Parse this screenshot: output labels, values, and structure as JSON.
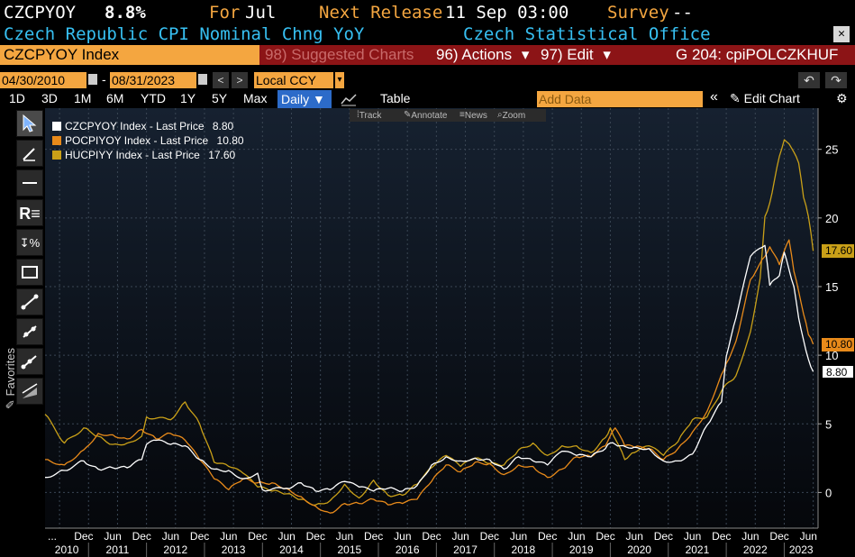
{
  "header": {
    "ticker": "CZCPYOY",
    "value": "8.8%",
    "period_prefix": "For",
    "period": "Jul",
    "next_release_label": "Next Release",
    "next_release": "11 Sep 03:00",
    "survey_label": "Survey",
    "survey_value": "--",
    "description": "Czech Republic CPI Nominal Chng YoY",
    "source": "Czech Statistical Office",
    "close_glyph": "✕"
  },
  "toolbar_bar": {
    "security": "CZCPYOY Index",
    "suggested": "98) Suggested Charts",
    "actions": "96) Actions",
    "edit": "97) Edit",
    "chart_id": "G 204: cpiPOLCZKHUF",
    "dropdown_glyph": "▾"
  },
  "dates": {
    "start": "04/30/2010",
    "dash": "-",
    "end": "08/31/2023",
    "prev": "<",
    "next": ">",
    "currency": "Local CCY"
  },
  "periods": {
    "items": [
      "1D",
      "3D",
      "1M",
      "6M",
      "YTD",
      "1Y",
      "5Y",
      "Max"
    ],
    "frequency": "Daily ▼",
    "table_label": "Table",
    "add_data_placeholder": "Add Data",
    "collapse": "«",
    "edit_chart": "Edit Chart",
    "undo": "↶",
    "redo": "↷"
  },
  "mini_toolbar": {
    "track": "Track",
    "annotate": "Annotate",
    "news": "News",
    "zoom": "Zoom"
  },
  "left_toolbar": {
    "favorites": "Favorites"
  },
  "colors": {
    "czcpyoy": "#ffffff",
    "pocpiyoy": "#e88a1a",
    "hucpiyy": "#c9a018",
    "amber": "#f4a640",
    "cyan": "#37c0f2",
    "redbar": "#8c1416"
  },
  "chart_data": {
    "type": "line",
    "x_axis_year_labels": [
      "2010",
      "2011",
      "2012",
      "2013",
      "2014",
      "2015",
      "2016",
      "2017",
      "2018",
      "2019",
      "2020",
      "2021",
      "2022",
      "2023"
    ],
    "x_axis_month_labels": [
      "...",
      "Dec",
      "Jun",
      "Dec",
      "Jun",
      "Dec",
      "Jun",
      "Dec",
      "Jun",
      "Dec",
      "Jun",
      "Dec",
      "Jun",
      "Dec",
      "Jun",
      "Dec",
      "Jun",
      "Dec",
      "Jun",
      "Dec",
      "Jun",
      "Dec",
      "Jun",
      "Dec",
      "Jun",
      "Dec",
      "Jun"
    ],
    "xlim": [
      "2010-04",
      "2023-08"
    ],
    "y_ticks": [
      0,
      5,
      10,
      15,
      20,
      25
    ],
    "ylim": [
      -2.6,
      28
    ],
    "grid": true,
    "legend_position": "top-left",
    "series": [
      {
        "name": "CZCPYOY Index - Last Price",
        "last": "8.80",
        "color": "#ffffff",
        "values": [
          [
            "2010-04",
            1.1
          ],
          [
            "2010-08",
            1.6
          ],
          [
            "2010-12",
            2.3
          ],
          [
            "2011-03",
            1.7
          ],
          [
            "2011-06",
            1.8
          ],
          [
            "2011-09",
            1.8
          ],
          [
            "2011-12",
            2.4
          ],
          [
            "2012-01",
            3.5
          ],
          [
            "2012-03",
            3.8
          ],
          [
            "2012-06",
            3.5
          ],
          [
            "2012-09",
            3.4
          ],
          [
            "2012-12",
            2.4
          ],
          [
            "2013-03",
            1.7
          ],
          [
            "2013-06",
            1.6
          ],
          [
            "2013-09",
            1.0
          ],
          [
            "2013-12",
            1.4
          ],
          [
            "2014-01",
            0.2
          ],
          [
            "2014-06",
            0.3
          ],
          [
            "2014-09",
            0.7
          ],
          [
            "2014-12",
            0.1
          ],
          [
            "2015-03",
            0.2
          ],
          [
            "2015-06",
            0.8
          ],
          [
            "2015-09",
            0.4
          ],
          [
            "2015-12",
            0.1
          ],
          [
            "2016-03",
            0.3
          ],
          [
            "2016-06",
            0.1
          ],
          [
            "2016-09",
            0.5
          ],
          [
            "2016-12",
            2.0
          ],
          [
            "2017-03",
            2.6
          ],
          [
            "2017-06",
            2.3
          ],
          [
            "2017-09",
            2.5
          ],
          [
            "2017-12",
            2.4
          ],
          [
            "2018-03",
            1.7
          ],
          [
            "2018-06",
            2.6
          ],
          [
            "2018-09",
            2.3
          ],
          [
            "2018-12",
            2.0
          ],
          [
            "2019-03",
            3.0
          ],
          [
            "2019-06",
            2.7
          ],
          [
            "2019-09",
            2.6
          ],
          [
            "2019-12",
            3.2
          ],
          [
            "2020-01",
            3.6
          ],
          [
            "2020-03",
            3.4
          ],
          [
            "2020-06",
            3.3
          ],
          [
            "2020-09",
            3.2
          ],
          [
            "2020-12",
            2.3
          ],
          [
            "2021-03",
            2.3
          ],
          [
            "2021-06",
            2.8
          ],
          [
            "2021-09",
            4.9
          ],
          [
            "2021-12",
            6.6
          ],
          [
            "2022-01",
            9.9
          ],
          [
            "2022-03",
            12.7
          ],
          [
            "2022-06",
            17.2
          ],
          [
            "2022-09",
            18.0
          ],
          [
            "2022-10",
            15.1
          ],
          [
            "2022-12",
            15.8
          ],
          [
            "2023-01",
            17.5
          ],
          [
            "2023-03",
            15.0
          ],
          [
            "2023-04",
            12.7
          ],
          [
            "2023-05",
            11.1
          ],
          [
            "2023-06",
            9.7
          ],
          [
            "2023-07",
            8.8
          ]
        ]
      },
      {
        "name": "POCPIYOY Index - Last Price",
        "last": "10.80",
        "color": "#e88a1a",
        "values": [
          [
            "2010-04",
            2.4
          ],
          [
            "2010-08",
            2.0
          ],
          [
            "2010-12",
            3.1
          ],
          [
            "2011-03",
            4.3
          ],
          [
            "2011-06",
            4.2
          ],
          [
            "2011-09",
            3.9
          ],
          [
            "2011-12",
            4.6
          ],
          [
            "2012-03",
            3.9
          ],
          [
            "2012-06",
            4.3
          ],
          [
            "2012-09",
            3.8
          ],
          [
            "2012-12",
            2.4
          ],
          [
            "2013-03",
            1.0
          ],
          [
            "2013-06",
            0.2
          ],
          [
            "2013-09",
            1.0
          ],
          [
            "2013-12",
            0.7
          ],
          [
            "2014-03",
            0.7
          ],
          [
            "2014-06",
            0.3
          ],
          [
            "2014-09",
            -0.3
          ],
          [
            "2014-12",
            -1.0
          ],
          [
            "2015-03",
            -1.5
          ],
          [
            "2015-06",
            -0.8
          ],
          [
            "2015-09",
            -0.8
          ],
          [
            "2015-12",
            -0.5
          ],
          [
            "2016-03",
            -0.9
          ],
          [
            "2016-06",
            -0.8
          ],
          [
            "2016-09",
            -0.5
          ],
          [
            "2016-12",
            0.8
          ],
          [
            "2017-03",
            2.0
          ],
          [
            "2017-06",
            1.5
          ],
          [
            "2017-09",
            2.2
          ],
          [
            "2017-12",
            2.1
          ],
          [
            "2018-03",
            1.3
          ],
          [
            "2018-06",
            2.0
          ],
          [
            "2018-09",
            1.9
          ],
          [
            "2018-12",
            1.1
          ],
          [
            "2019-03",
            1.7
          ],
          [
            "2019-06",
            2.6
          ],
          [
            "2019-09",
            2.6
          ],
          [
            "2019-12",
            3.4
          ],
          [
            "2020-02",
            4.7
          ],
          [
            "2020-04",
            3.4
          ],
          [
            "2020-06",
            3.3
          ],
          [
            "2020-09",
            3.2
          ],
          [
            "2020-12",
            2.4
          ],
          [
            "2021-03",
            3.2
          ],
          [
            "2021-06",
            4.4
          ],
          [
            "2021-09",
            5.9
          ],
          [
            "2021-12",
            8.6
          ],
          [
            "2022-01",
            9.4
          ],
          [
            "2022-03",
            11.0
          ],
          [
            "2022-06",
            15.5
          ],
          [
            "2022-09",
            17.2
          ],
          [
            "2022-10",
            17.9
          ],
          [
            "2022-12",
            16.6
          ],
          [
            "2023-02",
            18.4
          ],
          [
            "2023-03",
            16.1
          ],
          [
            "2023-05",
            13.0
          ],
          [
            "2023-06",
            11.5
          ],
          [
            "2023-07",
            10.8
          ]
        ]
      },
      {
        "name": "HUCPIYY Index - Last Price",
        "last": "17.60",
        "color": "#c9a018",
        "values": [
          [
            "2010-04",
            5.7
          ],
          [
            "2010-08",
            3.6
          ],
          [
            "2010-12",
            4.7
          ],
          [
            "2011-03",
            4.1
          ],
          [
            "2011-06",
            3.5
          ],
          [
            "2011-09",
            3.6
          ],
          [
            "2011-12",
            4.1
          ],
          [
            "2012-01",
            5.5
          ],
          [
            "2012-06",
            5.3
          ],
          [
            "2012-09",
            6.6
          ],
          [
            "2012-12",
            5.0
          ],
          [
            "2013-03",
            2.2
          ],
          [
            "2013-06",
            1.9
          ],
          [
            "2013-09",
            1.4
          ],
          [
            "2013-12",
            0.4
          ],
          [
            "2014-03",
            0.1
          ],
          [
            "2014-06",
            -0.1
          ],
          [
            "2014-09",
            -0.5
          ],
          [
            "2014-12",
            -0.9
          ],
          [
            "2015-03",
            -0.6
          ],
          [
            "2015-06",
            0.6
          ],
          [
            "2015-09",
            -0.4
          ],
          [
            "2015-12",
            0.9
          ],
          [
            "2016-03",
            -0.2
          ],
          [
            "2016-06",
            -0.2
          ],
          [
            "2016-09",
            0.6
          ],
          [
            "2016-12",
            1.8
          ],
          [
            "2017-03",
            2.7
          ],
          [
            "2017-06",
            1.9
          ],
          [
            "2017-09",
            2.5
          ],
          [
            "2017-12",
            2.1
          ],
          [
            "2018-03",
            2.0
          ],
          [
            "2018-06",
            3.1
          ],
          [
            "2018-09",
            3.6
          ],
          [
            "2018-12",
            2.7
          ],
          [
            "2019-03",
            3.4
          ],
          [
            "2019-06",
            3.4
          ],
          [
            "2019-09",
            2.9
          ],
          [
            "2019-12",
            4.0
          ],
          [
            "2020-01",
            4.7
          ],
          [
            "2020-04",
            2.4
          ],
          [
            "2020-06",
            2.9
          ],
          [
            "2020-09",
            3.4
          ],
          [
            "2020-12",
            2.7
          ],
          [
            "2021-03",
            3.7
          ],
          [
            "2021-06",
            5.3
          ],
          [
            "2021-09",
            5.5
          ],
          [
            "2021-12",
            7.4
          ],
          [
            "2022-01",
            7.9
          ],
          [
            "2022-03",
            8.5
          ],
          [
            "2022-06",
            11.7
          ],
          [
            "2022-08",
            15.6
          ],
          [
            "2022-09",
            20.1
          ],
          [
            "2022-10",
            21.1
          ],
          [
            "2022-12",
            24.5
          ],
          [
            "2023-01",
            25.7
          ],
          [
            "2023-02",
            25.4
          ],
          [
            "2023-04",
            24.0
          ],
          [
            "2023-05",
            21.5
          ],
          [
            "2023-06",
            20.1
          ],
          [
            "2023-07",
            17.6
          ]
        ]
      }
    ]
  }
}
